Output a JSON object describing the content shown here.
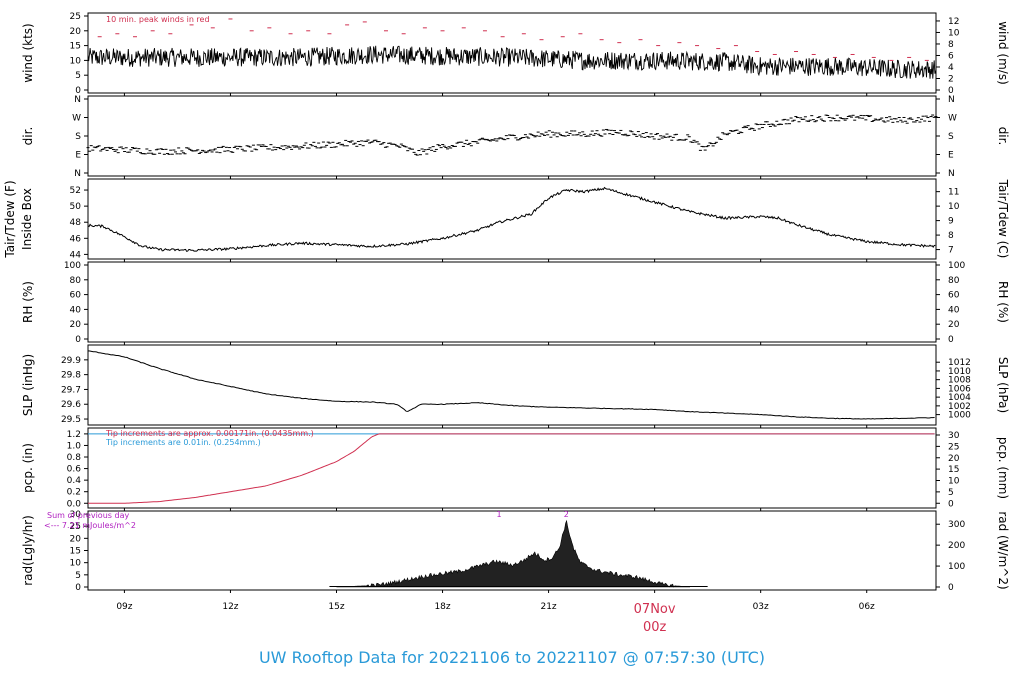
{
  "title": "UW Rooftop Data for 20221106  to  20221107 @ 07:57:30  (UTC)",
  "colors": {
    "title": "#2a9ad8",
    "peak": "#d03050",
    "pcp_note1": "#d03050",
    "pcp_note2": "#2a9ad8",
    "rad_note": "#b020c0",
    "date_label": "#d03050"
  },
  "x_axis": {
    "start_hour": 7.97,
    "end_hour": 31.96,
    "ticks": [
      {
        "hour": 9,
        "label": "09z"
      },
      {
        "hour": 12,
        "label": "12z"
      },
      {
        "hour": 15,
        "label": "15z"
      },
      {
        "hour": 18,
        "label": "18z"
      },
      {
        "hour": 21,
        "label": "21z"
      },
      {
        "hour": 24,
        "label": "00z"
      },
      {
        "hour": 27,
        "label": "03z"
      },
      {
        "hour": 30,
        "label": "06z"
      }
    ],
    "date_label": "07Nov",
    "date_label_hour": 24
  },
  "chart_data": [
    {
      "type": "line",
      "id": "wind",
      "ylabel": "wind (kts)",
      "ylabel_right": "wind (m/s)",
      "ylim": [
        0,
        25
      ],
      "left_ticks": [
        0,
        5,
        10,
        15,
        20,
        25
      ],
      "right_ticks": [
        {
          "v": 0,
          "label": "0"
        },
        {
          "v": 3.888,
          "label": "2"
        },
        {
          "v": 7.775,
          "label": "4"
        },
        {
          "v": 11.663,
          "label": "6"
        },
        {
          "v": 15.55,
          "label": "8"
        },
        {
          "v": 19.438,
          "label": "10"
        },
        {
          "v": 23.326,
          "label": "12"
        }
      ],
      "annotation": "10 min. peak winds in red",
      "mean_profile": [
        [
          8,
          11
        ],
        [
          10,
          11
        ],
        [
          12,
          11
        ],
        [
          14,
          11
        ],
        [
          16,
          12
        ],
        [
          18,
          11.5
        ],
        [
          20,
          11
        ],
        [
          22,
          10
        ],
        [
          24,
          10
        ],
        [
          26,
          9.5
        ],
        [
          27,
          8
        ],
        [
          29,
          8
        ],
        [
          31,
          7
        ],
        [
          32,
          7
        ]
      ],
      "noise": 3.2,
      "peaks": [
        [
          8.3,
          18
        ],
        [
          8.8,
          19
        ],
        [
          9.3,
          18
        ],
        [
          9.8,
          20
        ],
        [
          10.3,
          19
        ],
        [
          10.9,
          22
        ],
        [
          11.5,
          21
        ],
        [
          12,
          24
        ],
        [
          12.6,
          20
        ],
        [
          13.1,
          21
        ],
        [
          13.7,
          19
        ],
        [
          14.2,
          20
        ],
        [
          14.8,
          19
        ],
        [
          15.3,
          22
        ],
        [
          15.8,
          23
        ],
        [
          16.4,
          20
        ],
        [
          16.9,
          19
        ],
        [
          17.5,
          21
        ],
        [
          18,
          20
        ],
        [
          18.6,
          21
        ],
        [
          19.2,
          20
        ],
        [
          19.7,
          18
        ],
        [
          20.3,
          19
        ],
        [
          20.8,
          17
        ],
        [
          21.4,
          18
        ],
        [
          21.9,
          19
        ],
        [
          22.5,
          17
        ],
        [
          23,
          16
        ],
        [
          23.6,
          17
        ],
        [
          24.1,
          15
        ],
        [
          24.7,
          16
        ],
        [
          25.2,
          15
        ],
        [
          25.8,
          14
        ],
        [
          26.3,
          15
        ],
        [
          26.9,
          13
        ],
        [
          27.4,
          12
        ],
        [
          28,
          13
        ],
        [
          28.5,
          12
        ],
        [
          29.1,
          11
        ],
        [
          29.6,
          12
        ],
        [
          30.2,
          11
        ],
        [
          30.7,
          10
        ],
        [
          31.2,
          11
        ],
        [
          31.7,
          10
        ]
      ]
    },
    {
      "type": "scatter",
      "id": "dir",
      "ylabel": "dir.",
      "ylabel_right": "dir.",
      "ylim": [
        0,
        360
      ],
      "left_ticks": [
        {
          "v": 0,
          "label": "N"
        },
        {
          "v": 90,
          "label": "E"
        },
        {
          "v": 180,
          "label": "S"
        },
        {
          "v": 270,
          "label": "W"
        },
        {
          "v": 360,
          "label": "N"
        }
      ],
      "right_ticks": [
        {
          "v": 0,
          "label": "N"
        },
        {
          "v": 90,
          "label": "E"
        },
        {
          "v": 180,
          "label": "S"
        },
        {
          "v": 270,
          "label": "W"
        },
        {
          "v": 360,
          "label": "N"
        }
      ],
      "profile": [
        [
          8,
          120
        ],
        [
          10,
          105
        ],
        [
          12,
          115
        ],
        [
          14,
          130
        ],
        [
          15,
          140
        ],
        [
          16,
          150
        ],
        [
          16.8,
          130
        ],
        [
          17.3,
          95
        ],
        [
          18,
          130
        ],
        [
          19,
          150
        ],
        [
          20,
          175
        ],
        [
          21,
          190
        ],
        [
          22,
          190
        ],
        [
          23,
          200
        ],
        [
          24,
          180
        ],
        [
          25,
          170
        ],
        [
          25.4,
          110
        ],
        [
          26,
          190
        ],
        [
          27,
          230
        ],
        [
          28,
          260
        ],
        [
          29,
          270
        ],
        [
          30,
          265
        ],
        [
          31,
          255
        ],
        [
          32,
          270
        ]
      ],
      "spread": 16
    },
    {
      "type": "line",
      "id": "temp",
      "ylabel": "Tair/Tdew (F)",
      "ylabel2": "Inside Box",
      "ylabel_right": "Tair/Tdew (C)",
      "ylim": [
        43.8,
        53
      ],
      "left_ticks": [
        44,
        46,
        48,
        50,
        52
      ],
      "right_ticks": [
        {
          "v": 44.6,
          "label": "7"
        },
        {
          "v": 46.4,
          "label": "8"
        },
        {
          "v": 48.2,
          "label": "9"
        },
        {
          "v": 50,
          "label": "10"
        },
        {
          "v": 51.8,
          "label": "11"
        }
      ],
      "profile": [
        [
          8,
          47.6
        ],
        [
          8.4,
          47.5
        ],
        [
          9,
          46.2
        ],
        [
          9.5,
          45
        ],
        [
          10,
          44.6
        ],
        [
          11,
          44.5
        ],
        [
          12,
          44.7
        ],
        [
          13,
          45.1
        ],
        [
          14,
          45.4
        ],
        [
          15,
          45.2
        ],
        [
          16,
          45
        ],
        [
          17,
          45.3
        ],
        [
          18,
          46
        ],
        [
          19,
          47
        ],
        [
          19.6,
          48
        ],
        [
          20.5,
          49
        ],
        [
          21,
          51
        ],
        [
          21.5,
          52
        ],
        [
          22,
          51.8
        ],
        [
          22.6,
          52.2
        ],
        [
          23,
          51.7
        ],
        [
          24,
          50.5
        ],
        [
          25,
          49.3
        ],
        [
          26,
          48.5
        ],
        [
          27,
          48.7
        ],
        [
          27.5,
          48.5
        ],
        [
          28,
          47.7
        ],
        [
          29,
          46.4
        ],
        [
          30,
          45.6
        ],
        [
          31,
          45.2
        ],
        [
          32,
          45
        ]
      ],
      "noise": 0.15
    },
    {
      "type": "line",
      "id": "rh",
      "ylabel": "RH (%)",
      "ylabel_right": "RH (%)",
      "ylim": [
        0,
        100
      ],
      "left_ticks": [
        0,
        20,
        40,
        60,
        80,
        100
      ],
      "right_ticks": [
        {
          "v": 0,
          "label": "0"
        },
        {
          "v": 20,
          "label": "20"
        },
        {
          "v": 40,
          "label": "40"
        },
        {
          "v": 60,
          "label": "60"
        },
        {
          "v": 80,
          "label": "80"
        },
        {
          "v": 100,
          "label": "100"
        }
      ],
      "profile": []
    },
    {
      "type": "line",
      "id": "slp",
      "ylabel": "SLP (inHg)",
      "ylabel_right": "SLP (hPa)",
      "ylim": [
        29.48,
        29.98
      ],
      "left_ticks": [
        29.5,
        29.6,
        29.7,
        29.8,
        29.9
      ],
      "right_ticks": [
        {
          "v": 29.53,
          "label": "1000"
        },
        {
          "v": 29.589,
          "label": "1002"
        },
        {
          "v": 29.648,
          "label": "1004"
        },
        {
          "v": 29.707,
          "label": "1006"
        },
        {
          "v": 29.766,
          "label": "1008"
        },
        {
          "v": 29.825,
          "label": "1010"
        },
        {
          "v": 29.884,
          "label": "1012"
        }
      ],
      "profile": [
        [
          8,
          29.96
        ],
        [
          9,
          29.92
        ],
        [
          10,
          29.84
        ],
        [
          11,
          29.77
        ],
        [
          12,
          29.72
        ],
        [
          13,
          29.67
        ],
        [
          14,
          29.64
        ],
        [
          15,
          29.62
        ],
        [
          16,
          29.615
        ],
        [
          16.7,
          29.6
        ],
        [
          17,
          29.55
        ],
        [
          17.4,
          29.6
        ],
        [
          18,
          29.6
        ],
        [
          19,
          29.61
        ],
        [
          20,
          29.59
        ],
        [
          21,
          29.58
        ],
        [
          22,
          29.575
        ],
        [
          23,
          29.57
        ],
        [
          24,
          29.565
        ],
        [
          25,
          29.55
        ],
        [
          26,
          29.54
        ],
        [
          27,
          29.53
        ],
        [
          28,
          29.515
        ],
        [
          29,
          29.505
        ],
        [
          30,
          29.5
        ],
        [
          31,
          29.505
        ],
        [
          32,
          29.51
        ]
      ],
      "noise": 0.002
    },
    {
      "type": "line",
      "id": "pcp",
      "ylabel": "pcp. (in)",
      "ylabel_right": "pcp. (mm)",
      "ylim": [
        -0.03,
        1.25
      ],
      "left_ticks": [
        0,
        0.2,
        0.4,
        0.6,
        0.8,
        1,
        1.2
      ],
      "left_tick_labels": [
        "0.0",
        "0.2",
        "0.4",
        "0.6",
        "0.8",
        "1.0",
        "1.2"
      ],
      "right_ticks": [
        {
          "v": 0,
          "label": "0"
        },
        {
          "v": 0.197,
          "label": "5"
        },
        {
          "v": 0.394,
          "label": "10"
        },
        {
          "v": 0.591,
          "label": "15"
        },
        {
          "v": 0.787,
          "label": "20"
        },
        {
          "v": 0.984,
          "label": "25"
        },
        {
          "v": 1.181,
          "label": "30"
        }
      ],
      "annotation1": "Tip increments are approx. 0.00171in. (0.0435mm.)",
      "annotation2": "Tip increments are 0.01in. (0.254mm.)",
      "profile": [
        [
          8,
          0
        ],
        [
          9,
          0
        ],
        [
          10,
          0.03
        ],
        [
          11,
          0.1
        ],
        [
          12,
          0.2
        ],
        [
          13,
          0.3
        ],
        [
          14,
          0.48
        ],
        [
          15,
          0.72
        ],
        [
          15.5,
          0.9
        ],
        [
          16,
          1.15
        ],
        [
          16.2,
          1.2
        ],
        [
          32,
          1.2
        ]
      ],
      "profile2": [
        [
          8,
          1.2
        ],
        [
          32,
          1.2
        ]
      ]
    },
    {
      "type": "area",
      "id": "rad",
      "ylabel": "rad(Lgly/hr)",
      "ylabel_right": "rad (W/m^2)",
      "ylim": [
        0,
        30
      ],
      "left_ticks": [
        0,
        5,
        10,
        15,
        20,
        25,
        30
      ],
      "right_ticks": [
        {
          "v": 0,
          "label": "0"
        },
        {
          "v": 8.6,
          "label": "100"
        },
        {
          "v": 17.2,
          "label": "200"
        },
        {
          "v": 25.8,
          "label": "300"
        }
      ],
      "note_line1": "Sum of previous day",
      "note_line2": "<--- 7.21 mJoules/m^2",
      "markers": [
        {
          "hour": 19.6,
          "label": "1"
        },
        {
          "hour": 21.5,
          "label": "2"
        }
      ],
      "profile": [
        [
          15,
          0
        ],
        [
          16,
          0.6
        ],
        [
          16.5,
          1.5
        ],
        [
          17,
          3
        ],
        [
          17.5,
          4.5
        ],
        [
          18,
          5.5
        ],
        [
          18.5,
          6.5
        ],
        [
          19,
          8.5
        ],
        [
          19.5,
          10.5
        ],
        [
          20,
          9
        ],
        [
          20.3,
          11
        ],
        [
          20.6,
          14
        ],
        [
          20.9,
          11
        ],
        [
          21.1,
          12
        ],
        [
          21.3,
          16
        ],
        [
          21.5,
          27
        ],
        [
          21.7,
          16
        ],
        [
          21.9,
          10
        ],
        [
          22.3,
          7
        ],
        [
          23,
          5
        ],
        [
          23.5,
          4
        ],
        [
          24,
          2
        ],
        [
          24.3,
          0.8
        ],
        [
          25,
          0
        ]
      ],
      "noise": 0.8
    }
  ]
}
